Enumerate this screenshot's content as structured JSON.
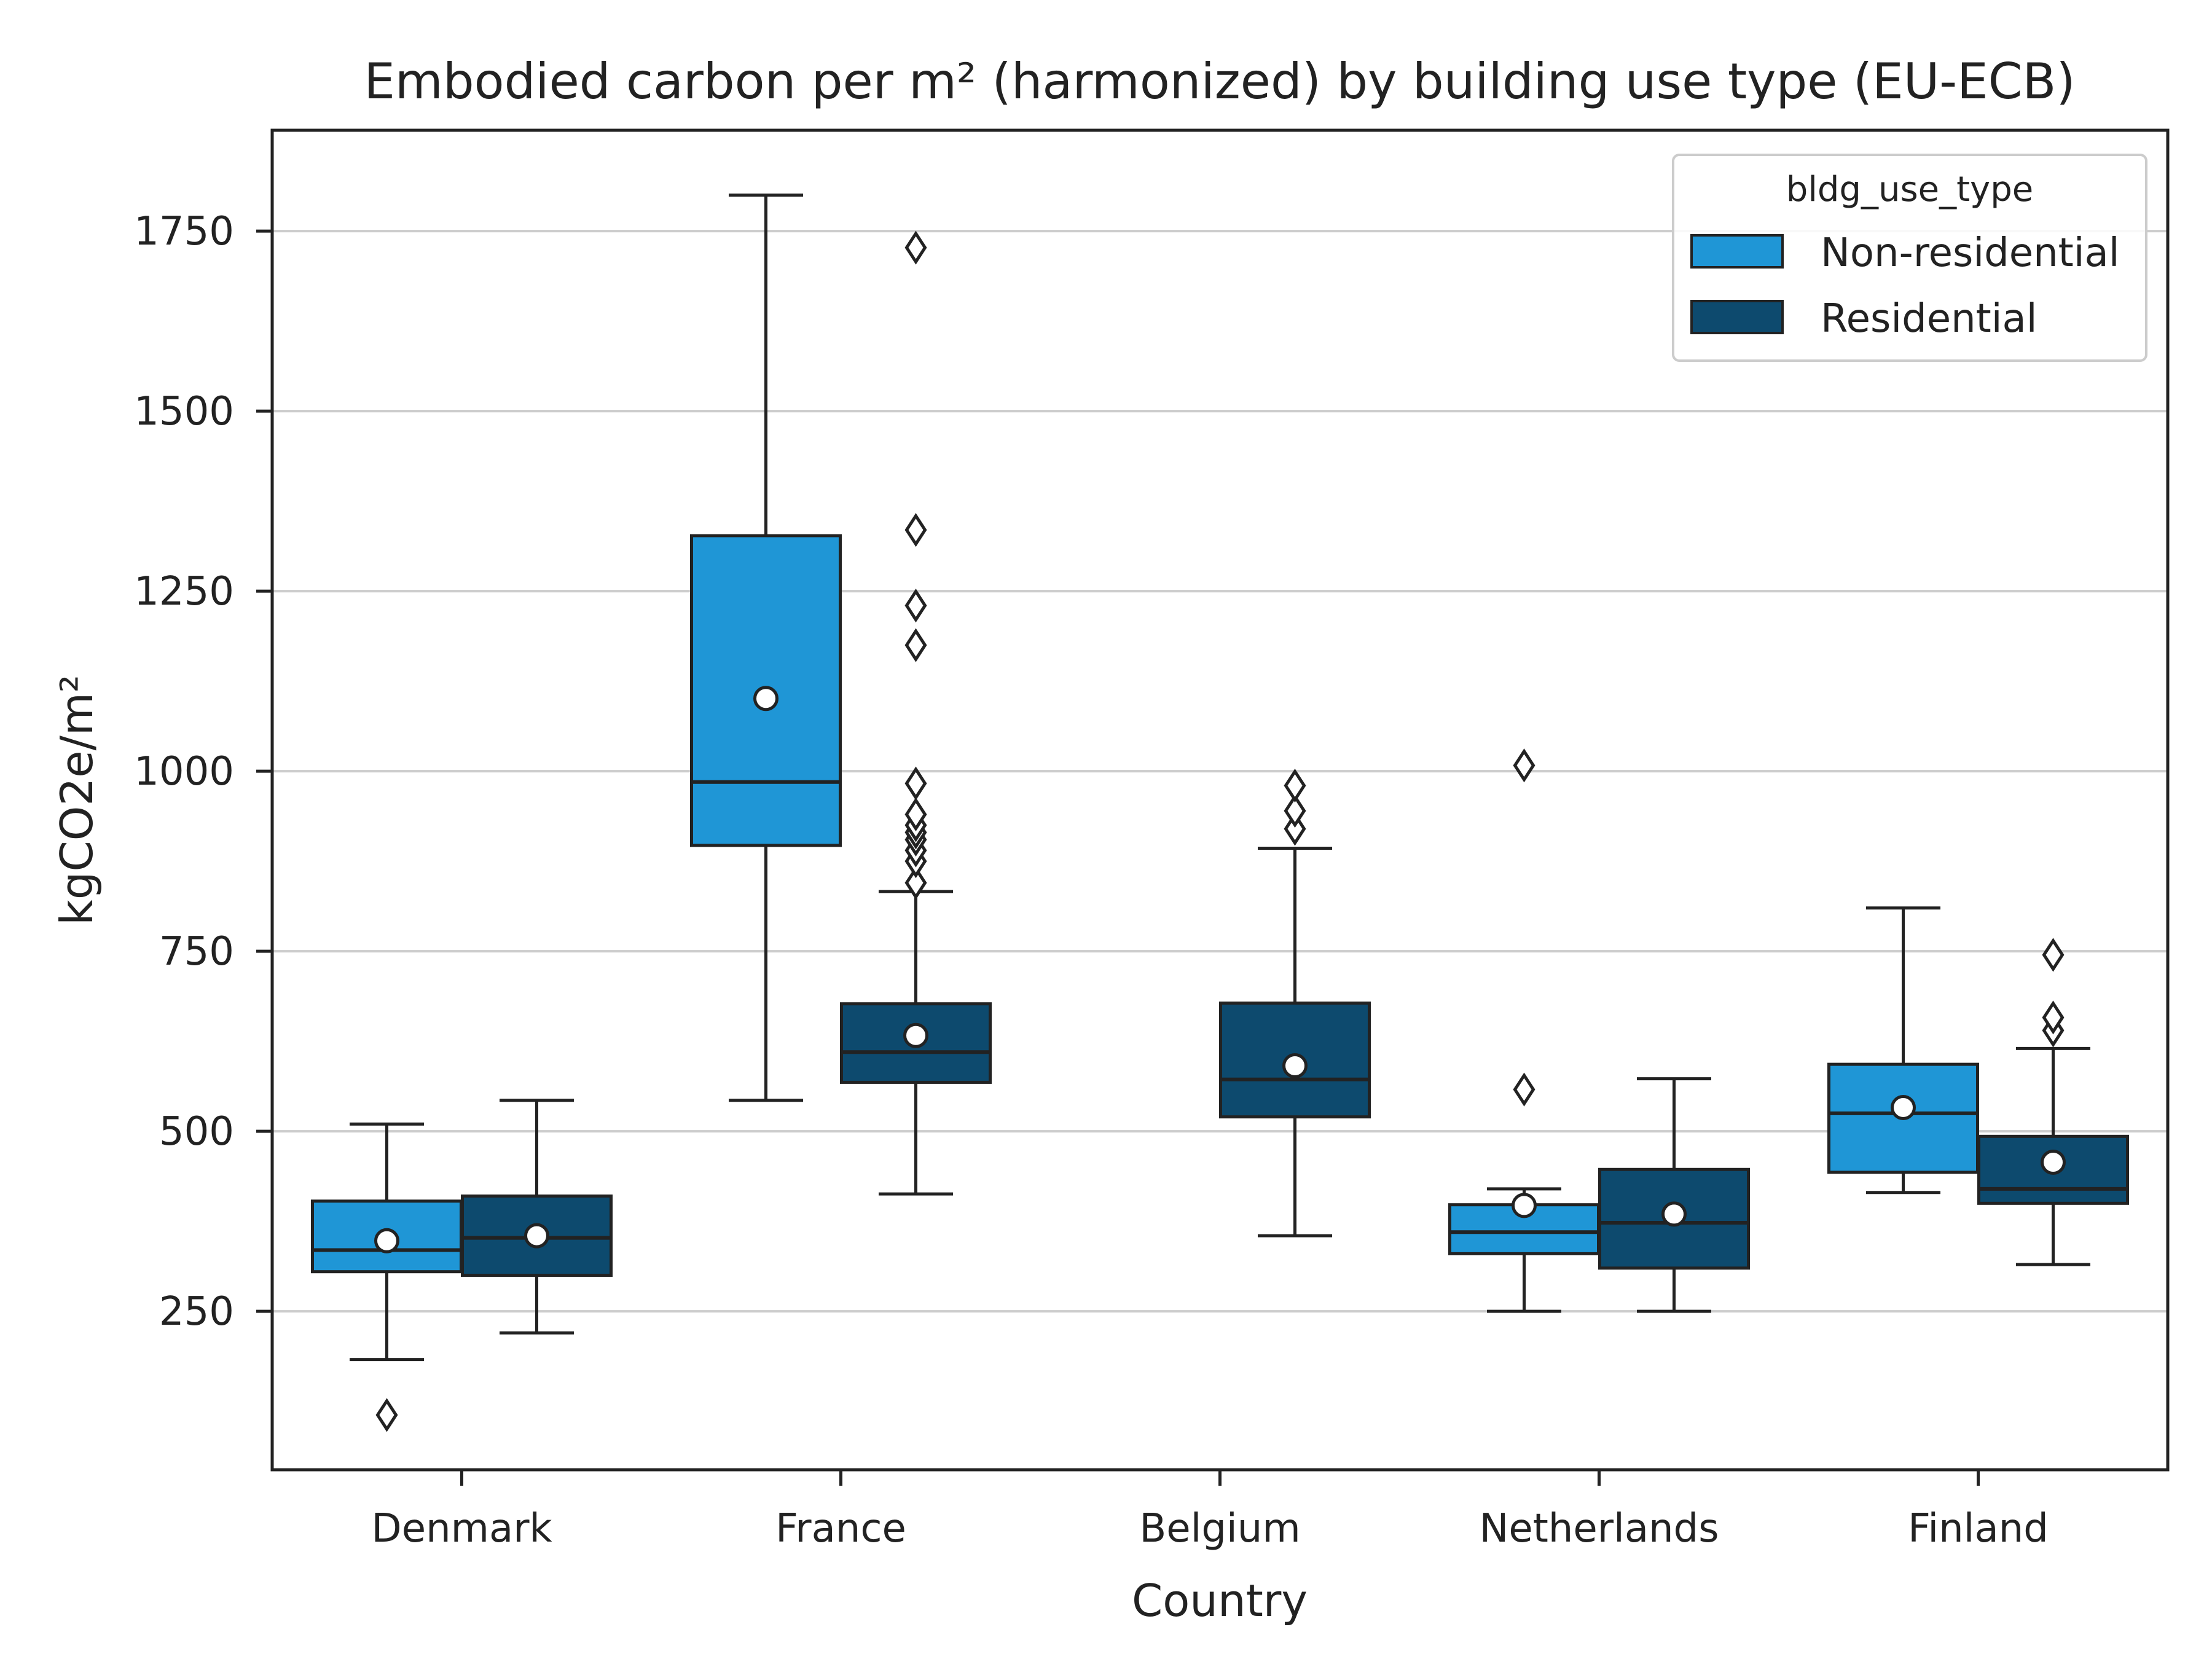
{
  "chart_data": {
    "type": "box",
    "title": "Embodied carbon per m² (harmonized) by building use type (EU-ECB)",
    "xlabel": "Country",
    "ylabel": "kgCO2e/m²",
    "ylim": [
      30,
      1890
    ],
    "yticks": [
      250,
      500,
      750,
      1000,
      1250,
      1500,
      1750
    ],
    "grid": "horizontal",
    "legend": {
      "title": "bldg_use_type",
      "position": "top-right"
    },
    "categories": [
      "Denmark",
      "France",
      "Belgium",
      "Netherlands",
      "Finland"
    ],
    "series": [
      {
        "name": "Non-residential",
        "color": "#1f96d6",
        "boxes": [
          {
            "category": "Denmark",
            "whislo": 183,
            "q1": 305,
            "median": 335,
            "q3": 403,
            "whishi": 510,
            "mean": 348,
            "fliers": [
              106
            ]
          },
          {
            "category": "France",
            "whislo": 543,
            "q1": 897,
            "median": 985,
            "q3": 1327,
            "whishi": 1800,
            "mean": 1101,
            "fliers": []
          },
          {
            "category": "Belgium",
            "absent": true
          },
          {
            "category": "Netherlands",
            "whislo": 250,
            "q1": 330,
            "median": 360,
            "q3": 398,
            "whishi": 420,
            "mean": 397,
            "fliers": [
              558,
              1008
            ]
          },
          {
            "category": "Finland",
            "whislo": 415,
            "q1": 443,
            "median": 525,
            "q3": 593,
            "whishi": 810,
            "mean": 533,
            "fliers": []
          }
        ]
      },
      {
        "name": "Residential",
        "color": "#0d4a6e",
        "boxes": [
          {
            "category": "Denmark",
            "whislo": 220,
            "q1": 300,
            "median": 352,
            "q3": 410,
            "whishi": 543,
            "mean": 355,
            "fliers": []
          },
          {
            "category": "France",
            "whislo": 413,
            "q1": 568,
            "median": 610,
            "q3": 677,
            "whishi": 833,
            "mean": 633,
            "fliers": [
              845,
              875,
              890,
              905,
              915,
              925,
              940,
              983,
              1175,
              1230,
              1335,
              1727
            ]
          },
          {
            "category": "Belgium",
            "whislo": 355,
            "q1": 520,
            "median": 572,
            "q3": 678,
            "whishi": 893,
            "mean": 591,
            "fliers": [
              920,
              945,
              980
            ]
          },
          {
            "category": "Netherlands",
            "whislo": 250,
            "q1": 310,
            "median": 373,
            "q3": 447,
            "whishi": 573,
            "mean": 385,
            "fliers": []
          },
          {
            "category": "Finland",
            "whislo": 315,
            "q1": 400,
            "median": 420,
            "q3": 493,
            "whishi": 615,
            "mean": 457,
            "fliers": [
              640,
              658,
              745
            ]
          }
        ]
      }
    ]
  }
}
